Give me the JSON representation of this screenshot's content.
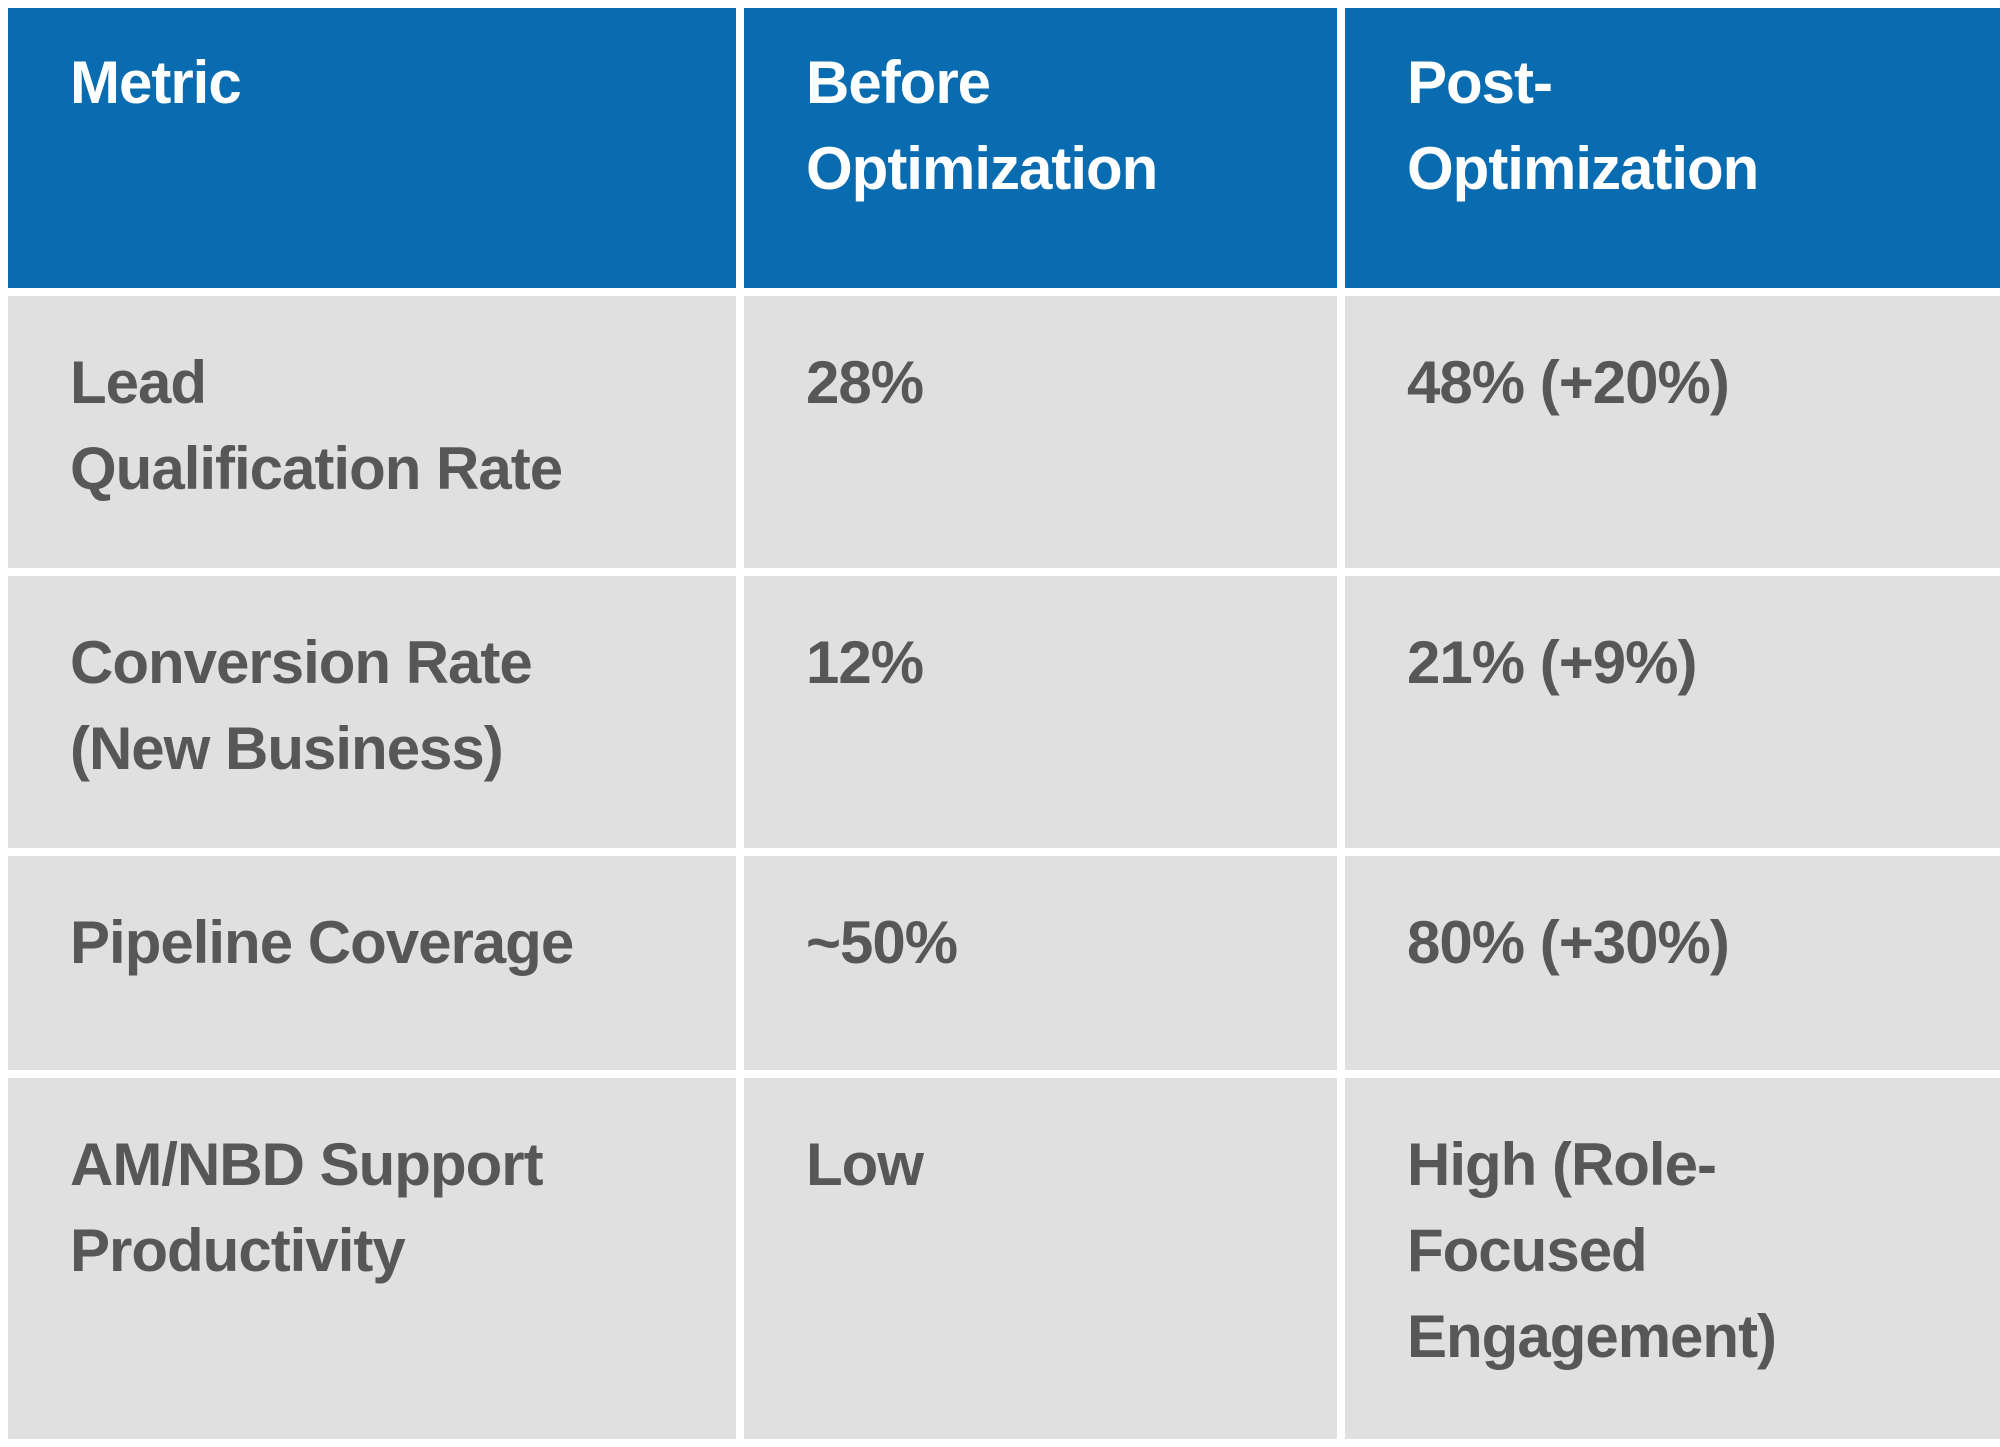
{
  "chart_data": {
    "type": "table",
    "title": "",
    "columns": [
      "Metric",
      "Before Optimization",
      "Post-Optimization"
    ],
    "rows": [
      [
        "Lead Qualification Rate",
        "28%",
        "48% (+20%)"
      ],
      [
        "Conversion Rate (New Business)",
        "12%",
        "21% (+9%)"
      ],
      [
        "Pipeline Coverage",
        "~50%",
        "80% (+30%)"
      ],
      [
        "AM/NBD Support Productivity",
        "Low",
        "High (Role-Focused Engagement)"
      ]
    ],
    "legend_position": "none",
    "grid": false
  },
  "cells": {
    "header": [
      "Metric",
      "Before\nOptimization",
      "Post-\nOptimization"
    ],
    "rows": [
      [
        "Lead\nQualification Rate",
        "28%",
        "48% (+20%)"
      ],
      [
        "Conversion Rate\n(New Business)",
        "12%",
        "21% (+9%)"
      ],
      [
        "Pipeline Coverage",
        "~50%",
        "80% (+30%)"
      ],
      [
        "AM/NBD Support\nProductivity",
        "Low",
        "High (Role-\nFocused\nEngagement)"
      ]
    ]
  },
  "colors": {
    "header_bg": "#0a6cb0",
    "header_text": "#ffffff",
    "body_bg": "#e0e0e0",
    "body_text": "#575757",
    "divider": "#ffffff"
  }
}
